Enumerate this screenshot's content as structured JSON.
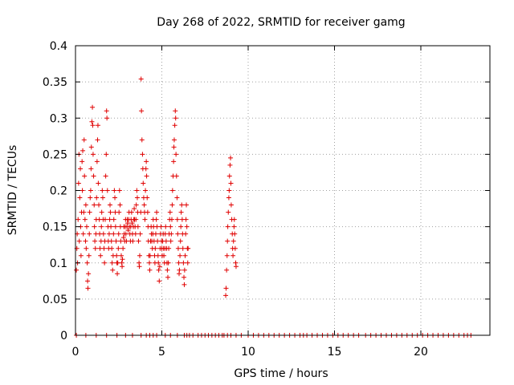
{
  "chart_data": {
    "type": "scatter",
    "title": "Day 268 of 2022, SRMTID for receiver gamg",
    "xlabel": "GPS time / hours",
    "ylabel": "SRMTID / TECUs",
    "xlim": [
      0,
      24
    ],
    "ylim": [
      0,
      0.4
    ],
    "x_ticks": [
      0,
      5,
      10,
      15,
      20
    ],
    "x_tick_labels": [
      "0",
      "5",
      "10",
      "15",
      "20"
    ],
    "y_ticks": [
      0,
      0.05,
      0.1,
      0.15,
      0.2,
      0.25,
      0.3,
      0.35,
      0.4
    ],
    "y_tick_labels": [
      "0",
      "0.05",
      "0.1",
      "0.15",
      "0.2",
      "0.25",
      "0.3",
      "0.35",
      "0.4"
    ],
    "grid": true,
    "marker": "+",
    "series": [
      {
        "name": "SRMTID",
        "color": "#e00000",
        "points": [
          [
            0.05,
            0.09
          ],
          [
            0.08,
            0.12
          ],
          [
            0.1,
            0.14
          ],
          [
            0.12,
            0.1
          ],
          [
            0.15,
            0.16
          ],
          [
            0.18,
            0.21
          ],
          [
            0.2,
            0.25
          ],
          [
            0.22,
            0.13
          ],
          [
            0.25,
            0.19
          ],
          [
            0.28,
            0.23
          ],
          [
            0.3,
            0.15
          ],
          [
            0.32,
            0.11
          ],
          [
            0.35,
            0.17
          ],
          [
            0.38,
            0.24
          ],
          [
            0.4,
            0.2
          ],
          [
            0.42,
            0.255
          ],
          [
            0.45,
            0.14
          ],
          [
            0.48,
            0.17
          ],
          [
            0.5,
            0.27
          ],
          [
            0.52,
            0.22
          ],
          [
            0.55,
            0.16
          ],
          [
            0.58,
            0.13
          ],
          [
            0.6,
            0.18
          ],
          [
            0.62,
            0.12
          ],
          [
            0.65,
            0.15
          ],
          [
            0.68,
            0.1
          ],
          [
            0.7,
            0.075
          ],
          [
            0.72,
            0.065
          ],
          [
            0.75,
            0.085
          ],
          [
            0.78,
            0.11
          ],
          [
            0.8,
            0.14
          ],
          [
            0.82,
            0.17
          ],
          [
            0.85,
            0.19
          ],
          [
            0.88,
            0.2
          ],
          [
            0.9,
            0.23
          ],
          [
            0.92,
            0.26
          ],
          [
            0.95,
            0.295
          ],
          [
            0.98,
            0.315
          ],
          [
            1.0,
            0.29
          ],
          [
            1.02,
            0.25
          ],
          [
            1.05,
            0.22
          ],
          [
            1.08,
            0.18
          ],
          [
            1.1,
            0.15
          ],
          [
            1.12,
            0.13
          ],
          [
            1.15,
            0.12
          ],
          [
            1.18,
            0.14
          ],
          [
            1.2,
            0.16
          ],
          [
            1.22,
            0.19
          ],
          [
            1.25,
            0.24
          ],
          [
            1.28,
            0.27
          ],
          [
            1.3,
            0.29
          ],
          [
            1.32,
            0.21
          ],
          [
            1.35,
            0.18
          ],
          [
            1.38,
            0.16
          ],
          [
            1.4,
            0.14
          ],
          [
            1.42,
            0.12
          ],
          [
            1.45,
            0.11
          ],
          [
            1.48,
            0.13
          ],
          [
            1.5,
            0.15
          ],
          [
            1.52,
            0.17
          ],
          [
            1.55,
            0.2
          ],
          [
            1.58,
            0.19
          ],
          [
            1.6,
            0.16
          ],
          [
            1.62,
            0.14
          ],
          [
            1.65,
            0.12
          ],
          [
            1.68,
            0.1
          ],
          [
            1.7,
            0.13
          ],
          [
            1.72,
            0.16
          ],
          [
            1.75,
            0.22
          ],
          [
            1.78,
            0.25
          ],
          [
            1.8,
            0.31
          ],
          [
            1.82,
            0.3
          ],
          [
            1.85,
            0.2
          ],
          [
            1.88,
            0.15
          ],
          [
            1.9,
            0.13
          ],
          [
            1.92,
            0.12
          ],
          [
            1.95,
            0.14
          ],
          [
            1.98,
            0.16
          ],
          [
            2.0,
            0.18
          ],
          [
            2.02,
            0.17
          ],
          [
            2.05,
            0.15
          ],
          [
            2.08,
            0.13
          ],
          [
            2.1,
            0.12
          ],
          [
            2.12,
            0.1
          ],
          [
            2.15,
            0.09
          ],
          [
            2.18,
            0.11
          ],
          [
            2.2,
            0.14
          ],
          [
            2.22,
            0.16
          ],
          [
            2.25,
            0.2
          ],
          [
            2.28,
            0.19
          ],
          [
            2.3,
            0.17
          ],
          [
            2.32,
            0.15
          ],
          [
            2.35,
            0.13
          ],
          [
            2.38,
            0.11
          ],
          [
            2.4,
            0.1
          ],
          [
            2.42,
            0.085
          ],
          [
            2.45,
            0.1
          ],
          [
            2.48,
            0.12
          ],
          [
            2.5,
            0.14
          ],
          [
            2.52,
            0.17
          ],
          [
            2.55,
            0.2
          ],
          [
            2.58,
            0.18
          ],
          [
            2.6,
            0.15
          ],
          [
            2.62,
            0.13
          ],
          [
            2.65,
            0.11
          ],
          [
            2.68,
            0.1
          ],
          [
            2.7,
            0.095
          ],
          [
            2.72,
            0.105
          ],
          [
            2.75,
            0.12
          ],
          [
            2.78,
            0.135
          ],
          [
            2.8,
            0.15
          ],
          [
            2.82,
            0.14
          ],
          [
            2.85,
            0.13
          ],
          [
            2.88,
            0.15
          ],
          [
            2.9,
            0.16
          ],
          [
            2.92,
            0.14
          ],
          [
            2.95,
            0.13
          ],
          [
            2.98,
            0.15
          ],
          [
            3.0,
            0.16
          ],
          [
            3.02,
            0.155
          ],
          [
            3.05,
            0.145
          ],
          [
            3.08,
            0.16
          ],
          [
            3.1,
            0.17
          ],
          [
            3.12,
            0.15
          ],
          [
            3.15,
            0.14
          ],
          [
            3.18,
            0.13
          ],
          [
            3.2,
            0.15
          ],
          [
            3.22,
            0.16
          ],
          [
            3.25,
            0.17
          ],
          [
            3.28,
            0.155
          ],
          [
            3.3,
            0.14
          ],
          [
            3.32,
            0.13
          ],
          [
            3.35,
            0.15
          ],
          [
            3.38,
            0.16
          ],
          [
            3.4,
            0.175
          ],
          [
            3.42,
            0.16
          ],
          [
            3.45,
            0.15
          ],
          [
            3.48,
            0.14
          ],
          [
            3.5,
            0.16
          ],
          [
            3.52,
            0.18
          ],
          [
            3.55,
            0.2
          ],
          [
            3.58,
            0.19
          ],
          [
            3.6,
            0.17
          ],
          [
            3.62,
            0.15
          ],
          [
            3.65,
            0.13
          ],
          [
            3.68,
            0.1
          ],
          [
            3.7,
            0.095
          ],
          [
            3.72,
            0.11
          ],
          [
            3.75,
            0.14
          ],
          [
            3.78,
            0.17
          ],
          [
            3.8,
            0.354
          ],
          [
            3.82,
            0.31
          ],
          [
            3.85,
            0.27
          ],
          [
            3.88,
            0.25
          ],
          [
            3.9,
            0.23
          ],
          [
            3.92,
            0.21
          ],
          [
            3.95,
            0.19
          ],
          [
            3.98,
            0.18
          ],
          [
            4.0,
            0.17
          ],
          [
            4.02,
            0.16
          ],
          [
            4.05,
            0.2
          ],
          [
            4.08,
            0.23
          ],
          [
            4.1,
            0.24
          ],
          [
            4.12,
            0.22
          ],
          [
            4.15,
            0.19
          ],
          [
            4.18,
            0.17
          ],
          [
            4.2,
            0.15
          ],
          [
            4.22,
            0.13
          ],
          [
            4.25,
            0.11
          ],
          [
            4.28,
            0.1
          ],
          [
            4.3,
            0.09
          ],
          [
            4.32,
            0.11
          ],
          [
            4.35,
            0.13
          ],
          [
            4.38,
            0.15
          ],
          [
            4.4,
            0.14
          ],
          [
            4.42,
            0.13
          ],
          [
            4.45,
            0.12
          ],
          [
            4.48,
            0.14
          ],
          [
            4.5,
            0.16
          ],
          [
            4.52,
            0.15
          ],
          [
            4.55,
            0.13
          ],
          [
            4.58,
            0.11
          ],
          [
            4.6,
            0.1
          ],
          [
            4.62,
            0.12
          ],
          [
            4.65,
            0.14
          ],
          [
            4.68,
            0.16
          ],
          [
            4.7,
            0.17
          ],
          [
            4.72,
            0.15
          ],
          [
            4.75,
            0.13
          ],
          [
            4.78,
            0.11
          ],
          [
            4.8,
            0.1
          ],
          [
            4.82,
            0.09
          ],
          [
            4.85,
            0.075
          ],
          [
            4.88,
            0.095
          ],
          [
            4.9,
            0.12
          ],
          [
            4.92,
            0.14
          ],
          [
            4.95,
            0.15
          ],
          [
            4.98,
            0.13
          ],
          [
            5.0,
            0.12
          ],
          [
            5.02,
            0.11
          ],
          [
            5.05,
            0.13
          ],
          [
            5.08,
            0.14
          ],
          [
            5.1,
            0.12
          ],
          [
            5.12,
            0.11
          ],
          [
            5.15,
            0.1
          ],
          [
            5.18,
            0.12
          ],
          [
            5.2,
            0.14
          ],
          [
            5.22,
            0.15
          ],
          [
            5.25,
            0.13
          ],
          [
            5.28,
            0.12
          ],
          [
            5.3,
            0.1
          ],
          [
            5.32,
            0.09
          ],
          [
            5.35,
            0.08
          ],
          [
            5.38,
            0.1
          ],
          [
            5.4,
            0.12
          ],
          [
            5.42,
            0.14
          ],
          [
            5.45,
            0.16
          ],
          [
            5.48,
            0.17
          ],
          [
            5.5,
            0.15
          ],
          [
            5.52,
            0.13
          ],
          [
            5.55,
            0.14
          ],
          [
            5.58,
            0.16
          ],
          [
            5.6,
            0.18
          ],
          [
            5.62,
            0.2
          ],
          [
            5.65,
            0.22
          ],
          [
            5.68,
            0.24
          ],
          [
            5.7,
            0.26
          ],
          [
            5.72,
            0.27
          ],
          [
            5.75,
            0.29
          ],
          [
            5.78,
            0.31
          ],
          [
            5.8,
            0.3
          ],
          [
            5.82,
            0.25
          ],
          [
            5.85,
            0.22
          ],
          [
            5.88,
            0.19
          ],
          [
            5.9,
            0.16
          ],
          [
            5.92,
            0.14
          ],
          [
            5.95,
            0.12
          ],
          [
            5.98,
            0.1
          ],
          [
            6.0,
            0.085
          ],
          [
            6.02,
            0.09
          ],
          [
            6.05,
            0.11
          ],
          [
            6.08,
            0.13
          ],
          [
            6.1,
            0.15
          ],
          [
            6.12,
            0.17
          ],
          [
            6.15,
            0.18
          ],
          [
            6.18,
            0.16
          ],
          [
            6.2,
            0.14
          ],
          [
            6.22,
            0.12
          ],
          [
            6.25,
            0.1
          ],
          [
            6.28,
            0.08
          ],
          [
            6.3,
            0.07
          ],
          [
            6.32,
            0.09
          ],
          [
            6.35,
            0.11
          ],
          [
            6.38,
            0.14
          ],
          [
            6.4,
            0.16
          ],
          [
            6.42,
            0.18
          ],
          [
            6.45,
            0.15
          ],
          [
            6.48,
            0.12
          ],
          [
            6.5,
            0.1
          ],
          [
            6.52,
            0.12
          ],
          [
            8.7,
            0.055
          ],
          [
            8.72,
            0.065
          ],
          [
            8.75,
            0.09
          ],
          [
            8.78,
            0.11
          ],
          [
            8.8,
            0.13
          ],
          [
            8.82,
            0.15
          ],
          [
            8.85,
            0.17
          ],
          [
            8.88,
            0.19
          ],
          [
            8.9,
            0.2
          ],
          [
            8.92,
            0.22
          ],
          [
            8.95,
            0.235
          ],
          [
            8.98,
            0.245
          ],
          [
            9.0,
            0.21
          ],
          [
            9.02,
            0.18
          ],
          [
            9.05,
            0.16
          ],
          [
            9.08,
            0.14
          ],
          [
            9.1,
            0.12
          ],
          [
            9.12,
            0.11
          ],
          [
            9.15,
            0.13
          ],
          [
            9.18,
            0.15
          ],
          [
            9.2,
            0.16
          ],
          [
            9.22,
            0.14
          ],
          [
            9.25,
            0.12
          ],
          [
            9.28,
            0.1
          ],
          [
            9.3,
            0.095
          ]
        ],
        "zero_x": [
          0.05,
          0.6,
          1.2,
          1.8,
          2.4,
          2.9,
          3.3,
          3.8,
          4.1,
          4.3,
          4.5,
          4.7,
          5.2,
          5.5,
          5.9,
          6.3,
          6.45,
          6.6,
          6.8,
          7.1,
          7.3,
          7.5,
          7.7,
          7.9,
          8.1,
          8.3,
          8.5,
          8.6,
          8.8,
          9.0,
          9.3,
          9.6,
          10.0,
          10.3,
          10.6,
          10.9,
          11.2,
          11.5,
          11.8,
          12.1,
          12.4,
          12.7,
          13.0,
          13.2,
          13.4,
          13.7,
          14.0,
          14.3,
          14.6,
          14.9,
          15.2,
          15.5,
          15.8,
          16.1,
          16.4,
          16.8,
          17.1,
          17.4,
          17.7,
          18.0,
          18.3,
          18.6,
          18.9,
          19.2,
          19.5,
          19.8,
          20.1,
          20.4,
          20.7,
          21.0,
          21.3,
          21.6,
          21.9,
          22.2,
          22.5,
          22.7,
          22.9
        ]
      }
    ]
  }
}
